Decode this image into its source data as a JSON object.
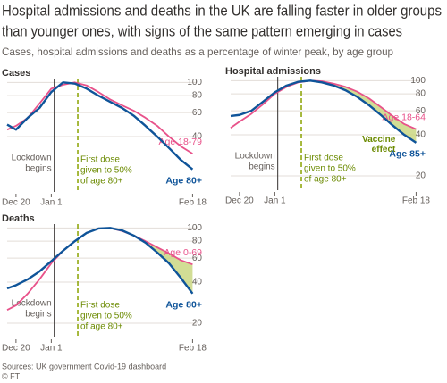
{
  "title": [
    "Hospital admissions and deaths in the UK are falling faster in older groups",
    "than younger ones, with signs of the same pattern emerging in cases"
  ],
  "subtitle": "Cases, hospital admissions and deaths as a percentage of winter peak, by age group",
  "source": "Sources: UK government Covid-19 dashboard",
  "credit": "© FT",
  "chart_data": [
    {
      "type": "line",
      "title": "Cases",
      "log_scale": true,
      "grid": true,
      "fill_between": false,
      "x": [
        -3,
        0,
        4,
        8,
        12,
        16,
        20,
        24,
        28,
        32,
        36,
        40,
        44,
        48,
        52,
        56,
        60
      ],
      "xlim": [
        -3,
        62
      ],
      "xticks": [
        {
          "value": 0,
          "label": "Dec 20"
        },
        {
          "value": 12,
          "label": "Jan 1"
        },
        {
          "value": 60,
          "label": "Feb 18"
        }
      ],
      "ylim": [
        20,
        110
      ],
      "yticks": [
        100,
        80,
        60,
        40
      ],
      "series": [
        {
          "name": "Age 18-79",
          "color": "#e8528a",
          "values": [
            45,
            48,
            55,
            70,
            90,
            96,
            100,
            95,
            85,
            75,
            68,
            62,
            55,
            48,
            40,
            34,
            30
          ]
        },
        {
          "name": "Age 80+",
          "color": "#0f5499",
          "values": [
            49,
            45,
            55,
            65,
            85,
            100,
            98,
            90,
            80,
            72,
            65,
            57,
            48,
            40,
            33,
            27,
            23
          ]
        }
      ],
      "annotations": [
        {
          "text": [
            "Lockdown",
            "begins"
          ],
          "x": 13,
          "style": "solid"
        },
        {
          "text": [
            "First dose",
            "given to 50%",
            "of age 80+"
          ],
          "x": 21,
          "style": "dashed"
        }
      ]
    },
    {
      "type": "line",
      "title": "Hospital admissions",
      "log_scale": true,
      "grid": true,
      "fill_between": true,
      "x": [
        -3,
        0,
        4,
        8,
        12,
        16,
        20,
        24,
        28,
        32,
        36,
        40,
        44,
        48,
        52,
        56,
        60
      ],
      "xlim": [
        -3,
        62
      ],
      "xticks": [
        {
          "value": 0,
          "label": "Dec 20"
        },
        {
          "value": 12,
          "label": "Jan 1"
        },
        {
          "value": 60,
          "label": "Feb 18"
        }
      ],
      "ylim": [
        20,
        110
      ],
      "yticks": [
        100,
        80,
        60,
        40,
        20
      ],
      "series": [
        {
          "name": "Age 18-64",
          "color": "#e8528a",
          "values": [
            45,
            50,
            57,
            67,
            80,
            90,
            97,
            100,
            99,
            95,
            90,
            83,
            74,
            64,
            55,
            48,
            44
          ]
        },
        {
          "name": "Age 85+",
          "color": "#0f5499",
          "values": [
            55,
            56,
            60,
            70,
            82,
            92,
            98,
            100,
            97,
            92,
            85,
            76,
            66,
            56,
            47,
            40,
            35
          ]
        }
      ],
      "annotations": [
        {
          "text": [
            "Lockdown",
            "begins"
          ],
          "x": 13,
          "style": "solid"
        },
        {
          "text": [
            "First dose",
            "given to 50%",
            "of age 80+"
          ],
          "x": 21,
          "style": "dashed"
        },
        {
          "text": [
            "Vaccine",
            "effect"
          ],
          "x": 53,
          "y": 37,
          "style": "label"
        }
      ]
    },
    {
      "type": "line",
      "title": "Deaths",
      "log_scale": true,
      "grid": true,
      "fill_between": true,
      "x": [
        -3,
        0,
        4,
        8,
        12,
        16,
        20,
        24,
        28,
        32,
        36,
        40,
        44,
        48,
        52,
        56,
        60
      ],
      "xlim": [
        -3,
        62
      ],
      "xticks": [
        {
          "value": 0,
          "label": "Dec 20"
        },
        {
          "value": 12,
          "label": "Jan 1"
        },
        {
          "value": 60,
          "label": "Feb 18"
        }
      ],
      "ylim": [
        20,
        110
      ],
      "yticks": [
        100,
        80,
        60,
        40,
        20
      ],
      "series": [
        {
          "name": "Age 0-69",
          "color": "#e8528a",
          "values": [
            25,
            27,
            33,
            42,
            55,
            68,
            80,
            92,
            99,
            100,
            95,
            88,
            80,
            72,
            65,
            58,
            54
          ]
        },
        {
          "name": "Age 80+",
          "color": "#0f5499",
          "values": [
            36,
            38,
            42,
            48,
            57,
            68,
            80,
            92,
            99,
            100,
            96,
            88,
            78,
            66,
            55,
            43,
            33
          ]
        }
      ],
      "annotations": [
        {
          "text": [
            "Lockdown",
            "begins"
          ],
          "x": 13,
          "style": "solid"
        },
        {
          "text": [
            "First dose",
            "given to 50%",
            "of age 80+"
          ],
          "x": 21,
          "style": "dashed"
        }
      ]
    }
  ]
}
